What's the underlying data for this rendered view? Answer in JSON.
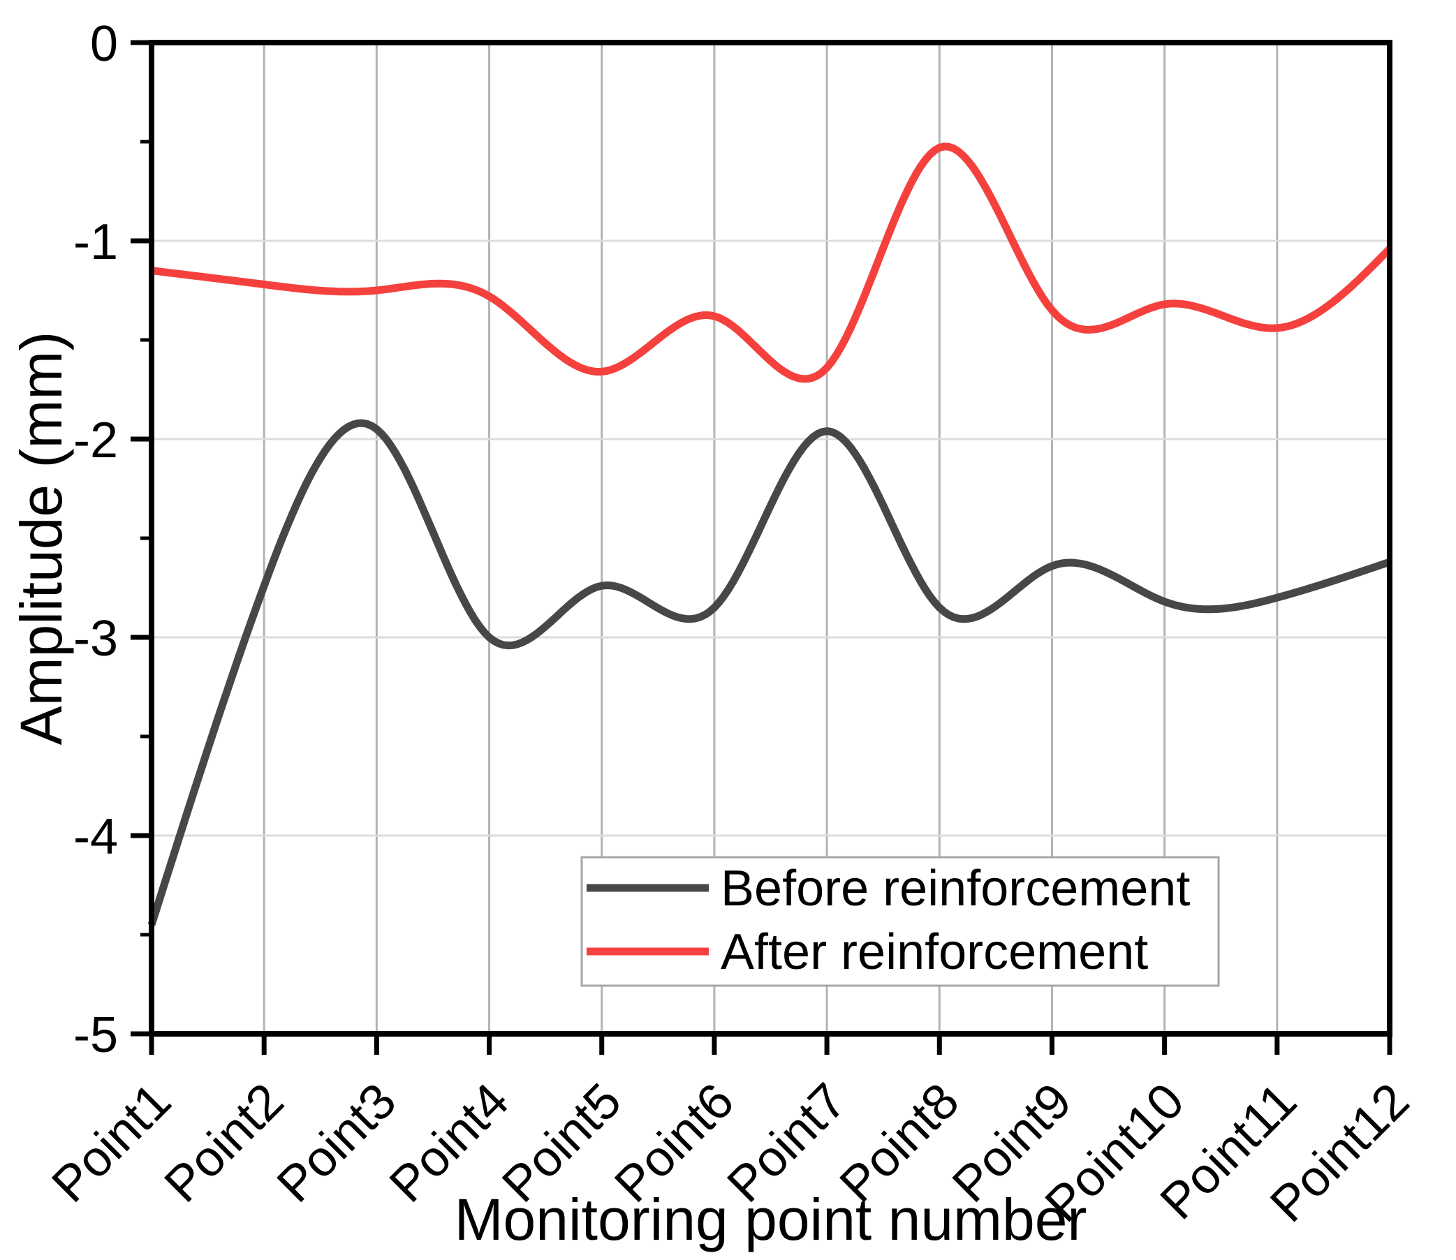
{
  "figure": {
    "background": "#ffffff"
  },
  "chart_data": {
    "type": "line",
    "title": "",
    "xlabel": "Monitoring point number",
    "ylabel": "Amplitude (mm)",
    "categories": [
      "Point1",
      "Point2",
      "Point3",
      "Point4",
      "Point5",
      "Point6",
      "Point7",
      "Point8",
      "Point9",
      "Point10",
      "Point11",
      "Point12"
    ],
    "y_tick_labels": [
      "0",
      "-1",
      "-2",
      "-3",
      "-4",
      "-5"
    ],
    "y_ticks": [
      0,
      -1,
      -2,
      -3,
      -4,
      -5
    ],
    "ylim": [
      -5,
      0
    ],
    "grid": {
      "vertical": true,
      "horizontal": true,
      "minor_y_ticks": true
    },
    "interpolation": "natural-cubic-spline",
    "legend_position": "inside-bottom-center",
    "series": [
      {
        "name": "Before reinforcement",
        "color": "#474747",
        "values": [
          -4.45,
          -2.74,
          -1.95,
          -3.0,
          -2.74,
          -2.85,
          -1.96,
          -2.85,
          -2.64,
          -2.82,
          -2.8,
          -2.62
        ]
      },
      {
        "name": "After reinforcement",
        "color": "#F5413E",
        "values": [
          -1.15,
          -1.22,
          -1.25,
          -1.28,
          -1.66,
          -1.38,
          -1.64,
          -0.53,
          -1.35,
          -1.32,
          -1.44,
          -1.04
        ]
      }
    ]
  },
  "style": {
    "frame_color": "#000000",
    "v_gridline_color": "#b3b3b3",
    "h_gridline_color": "#dcdcdc",
    "tick_color": "#000000",
    "text_color": "#000000",
    "legend_border_color": "#a6a6a6",
    "legend_fill": "#ffffff"
  }
}
